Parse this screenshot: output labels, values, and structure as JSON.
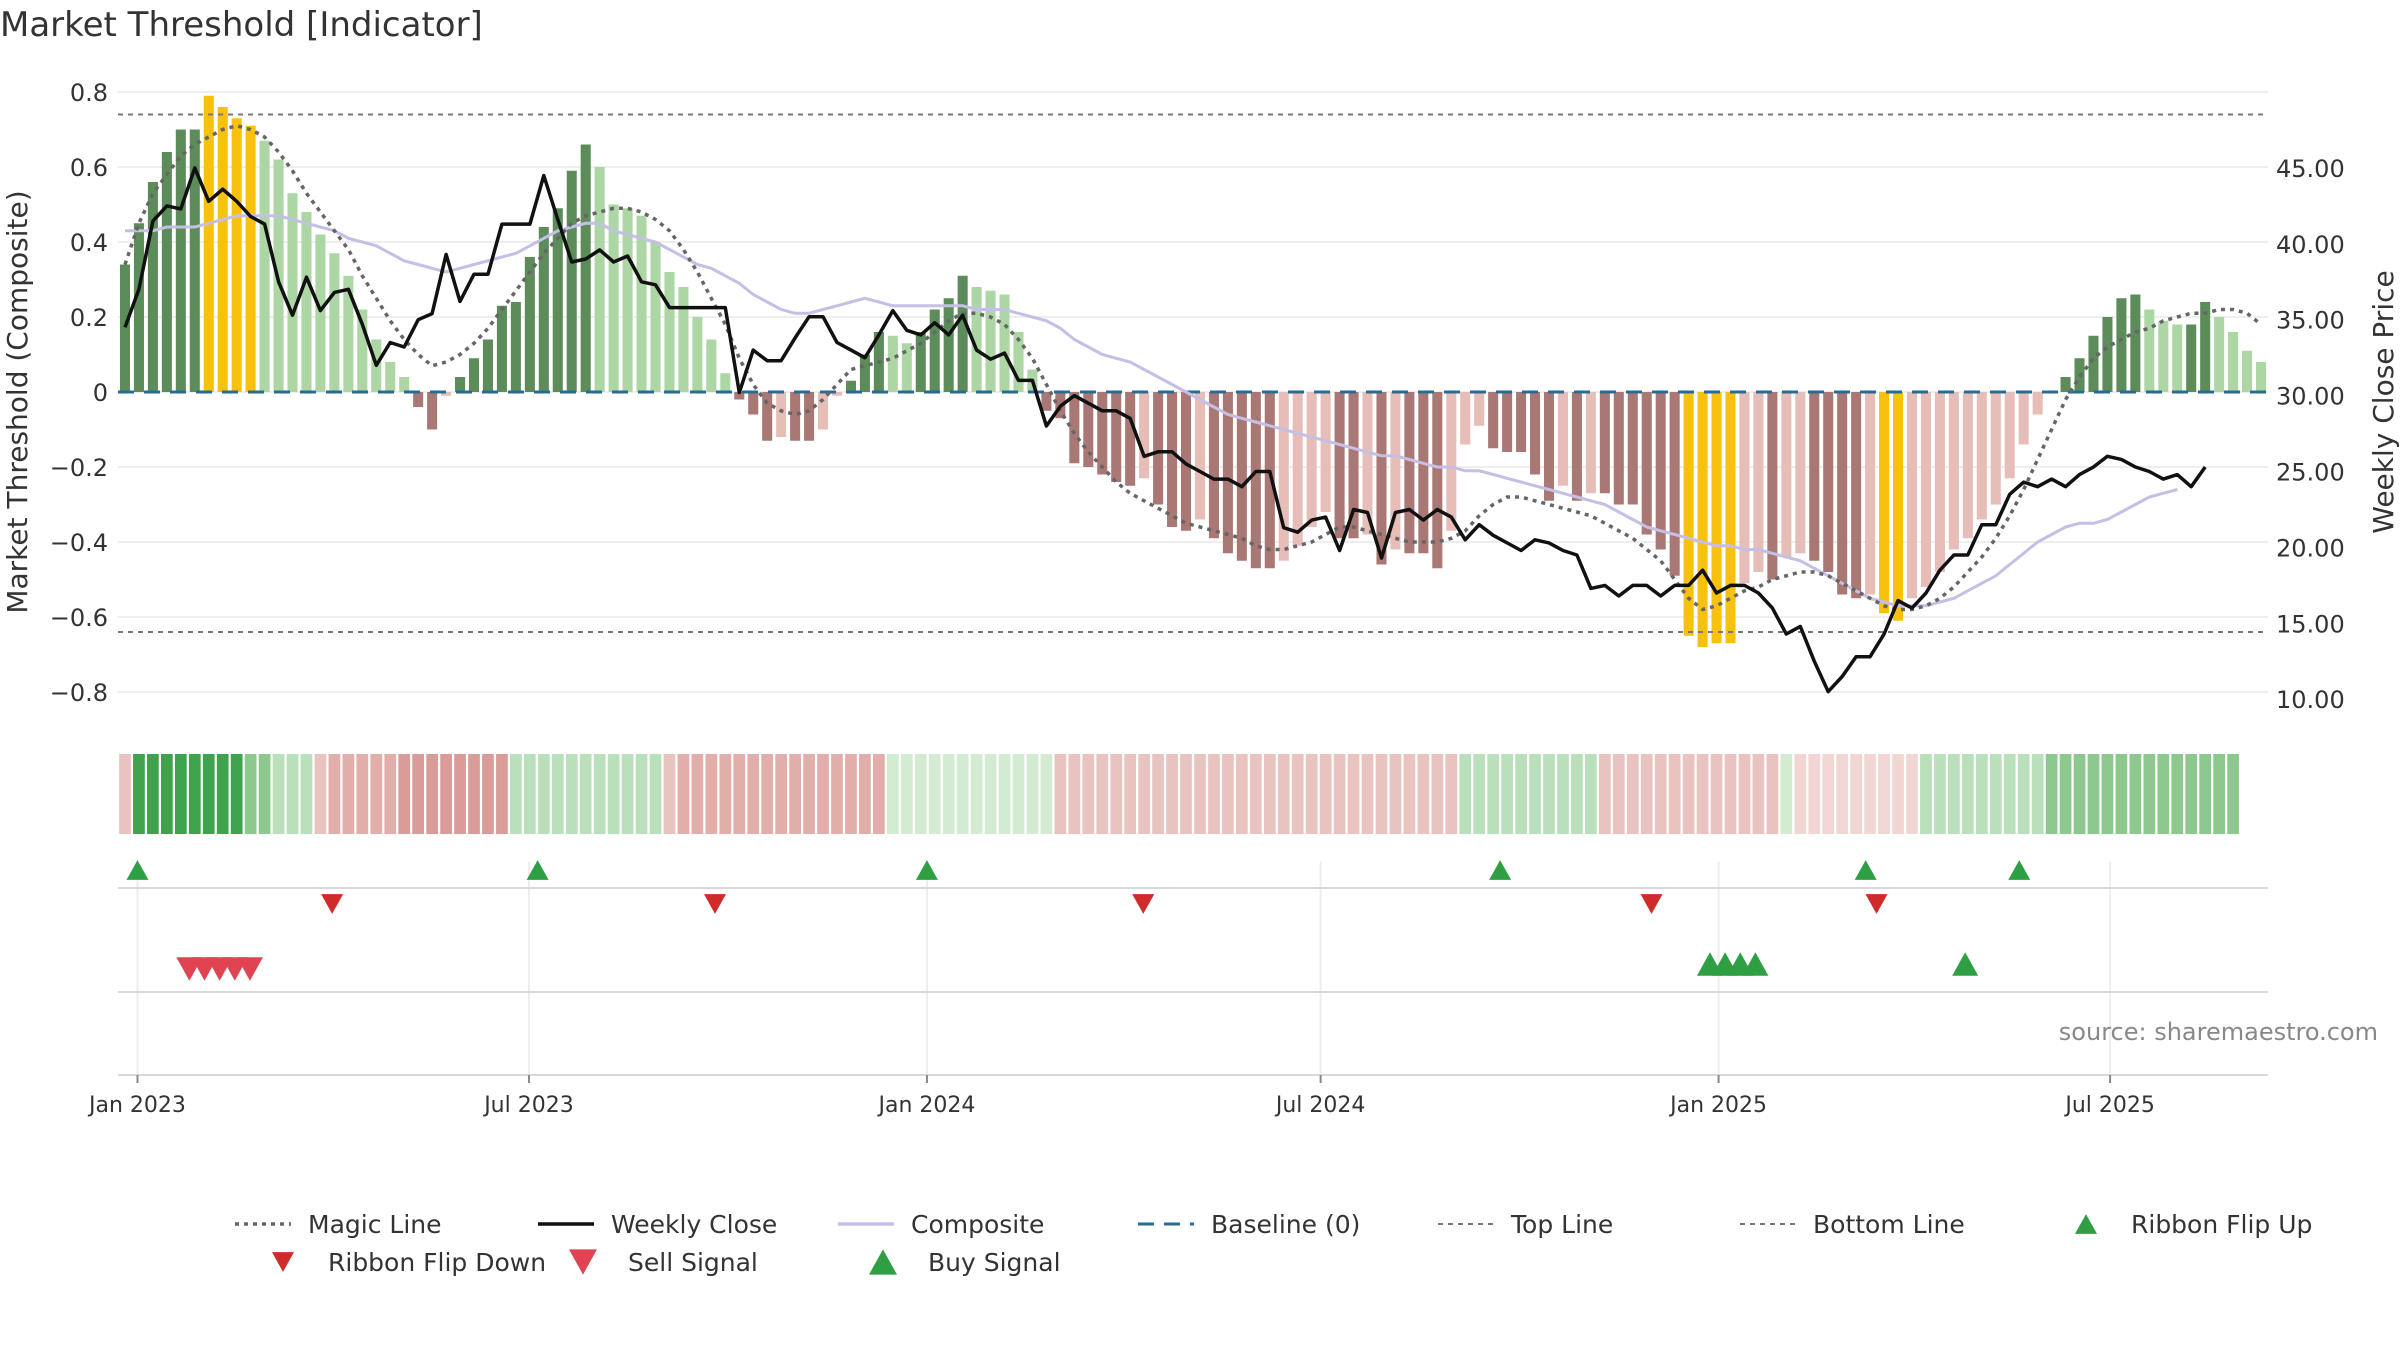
{
  "chart_data": {
    "type": "bar",
    "title": "Market Threshold [Indicator]",
    "ylabel_left": "Market Threshold (Composite)",
    "ylabel_right": "Weekly Close Price",
    "source": "source: sharemaestro.com",
    "y_left": {
      "range": [
        -0.88,
        0.8
      ],
      "ticks": [
        0.8,
        0.6,
        0.4,
        0.2,
        0,
        -0.2,
        -0.4,
        -0.6,
        -0.8
      ],
      "tick_labels": [
        "0.8",
        "0.6",
        "0.4",
        "0.2",
        "0",
        "−0.2",
        "−0.4",
        "−0.6",
        "−0.8"
      ]
    },
    "y_right": {
      "range": [
        8.5,
        50
      ],
      "ticks": [
        45,
        40,
        35,
        30,
        25,
        20,
        15,
        10
      ],
      "tick_labels": [
        "45.00",
        "40.00",
        "35.00",
        "30.00",
        "25.00",
        "20.00",
        "15.00",
        "10.00"
      ]
    },
    "x_axis": {
      "start_date": "2022-12-23",
      "end_date": "2025-09-12",
      "ticks": [
        {
          "date": "2023-01-01",
          "label": "Jan 2023"
        },
        {
          "date": "2023-07-01",
          "label": "Jul 2023"
        },
        {
          "date": "2024-01-01",
          "label": "Jan 2024"
        },
        {
          "date": "2024-07-01",
          "label": "Jul 2024"
        },
        {
          "date": "2025-01-01",
          "label": "Jan 2025"
        },
        {
          "date": "2025-07-01",
          "label": "Jul 2025"
        }
      ]
    },
    "top_line": 0.74,
    "bottom_line": -0.64,
    "baseline": 0,
    "composite_bars": [
      0.34,
      0.45,
      0.56,
      0.64,
      0.7,
      0.7,
      0.79,
      0.76,
      0.73,
      0.71,
      0.67,
      0.62,
      0.53,
      0.48,
      0.42,
      0.37,
      0.31,
      0.22,
      0.14,
      0.08,
      0.04,
      -0.04,
      -0.1,
      -0.01,
      0.04,
      0.09,
      0.14,
      0.23,
      0.24,
      0.36,
      0.44,
      0.49,
      0.59,
      0.66,
      0.6,
      0.5,
      0.49,
      0.47,
      0.4,
      0.32,
      0.28,
      0.2,
      0.14,
      0.05,
      -0.02,
      -0.06,
      -0.13,
      -0.12,
      -0.13,
      -0.13,
      -0.1,
      -0.01,
      0.03,
      0.1,
      0.16,
      0.15,
      0.13,
      0.16,
      0.22,
      0.25,
      0.31,
      0.28,
      0.27,
      0.26,
      0.16,
      0.06,
      -0.05,
      -0.07,
      -0.19,
      -0.2,
      -0.22,
      -0.24,
      -0.25,
      -0.23,
      -0.3,
      -0.36,
      -0.37,
      -0.34,
      -0.39,
      -0.43,
      -0.45,
      -0.47,
      -0.47,
      -0.45,
      -0.41,
      -0.36,
      -0.32,
      -0.39,
      -0.39,
      -0.38,
      -0.46,
      -0.42,
      -0.43,
      -0.43,
      -0.47,
      -0.37,
      -0.14,
      -0.09,
      -0.15,
      -0.16,
      -0.16,
      -0.22,
      -0.29,
      -0.25,
      -0.29,
      -0.27,
      -0.27,
      -0.3,
      -0.3,
      -0.38,
      -0.42,
      -0.49,
      -0.65,
      -0.68,
      -0.67,
      -0.67,
      -0.51,
      -0.48,
      -0.5,
      -0.44,
      -0.43,
      -0.45,
      -0.48,
      -0.54,
      -0.55,
      -0.54,
      -0.59,
      -0.61,
      -0.55,
      -0.52,
      -0.48,
      -0.42,
      -0.39,
      -0.34,
      -0.3,
      -0.23,
      -0.14,
      -0.06,
      0,
      0.04,
      0.09,
      0.15,
      0.2,
      0.25,
      0.26,
      0.22,
      0.19,
      0.18,
      0.18,
      0.24,
      0.2,
      0.16,
      0.11,
      0.08
    ],
    "magic_line": [
      0.34,
      0.45,
      0.53,
      0.58,
      0.63,
      0.66,
      0.68,
      0.7,
      0.71,
      0.7,
      0.68,
      0.64,
      0.59,
      0.53,
      0.48,
      0.43,
      0.38,
      0.31,
      0.25,
      0.19,
      0.14,
      0.1,
      0.07,
      0.08,
      0.1,
      0.13,
      0.17,
      0.22,
      0.27,
      0.32,
      0.37,
      0.41,
      0.45,
      0.47,
      0.48,
      0.49,
      0.49,
      0.48,
      0.46,
      0.43,
      0.38,
      0.32,
      0.25,
      0.18,
      0.09,
      0.02,
      -0.03,
      -0.05,
      -0.06,
      -0.05,
      -0.02,
      0.02,
      0.06,
      0.07,
      0.08,
      0.09,
      0.11,
      0.13,
      0.16,
      0.19,
      0.21,
      0.21,
      0.2,
      0.18,
      0.14,
      0.09,
      0.02,
      -0.05,
      -0.11,
      -0.16,
      -0.2,
      -0.24,
      -0.27,
      -0.29,
      -0.31,
      -0.33,
      -0.35,
      -0.36,
      -0.37,
      -0.38,
      -0.39,
      -0.41,
      -0.42,
      -0.42,
      -0.41,
      -0.4,
      -0.38,
      -0.36,
      -0.36,
      -0.37,
      -0.38,
      -0.39,
      -0.4,
      -0.4,
      -0.4,
      -0.39,
      -0.37,
      -0.33,
      -0.3,
      -0.28,
      -0.28,
      -0.29,
      -0.3,
      -0.31,
      -0.32,
      -0.33,
      -0.35,
      -0.37,
      -0.39,
      -0.42,
      -0.45,
      -0.5,
      -0.55,
      -0.58,
      -0.57,
      -0.55,
      -0.53,
      -0.52,
      -0.5,
      -0.49,
      -0.48,
      -0.48,
      -0.49,
      -0.51,
      -0.53,
      -0.55,
      -0.57,
      -0.58,
      -0.58,
      -0.57,
      -0.55,
      -0.52,
      -0.48,
      -0.44,
      -0.39,
      -0.33,
      -0.26,
      -0.18,
      -0.1,
      -0.02,
      0.04,
      0.09,
      0.12,
      0.14,
      0.16,
      0.17,
      0.19,
      0.2,
      0.21,
      0.21,
      0.22,
      0.22,
      0.21,
      0.18
    ],
    "composite_line": [
      0.43,
      0.43,
      0.43,
      0.44,
      0.44,
      0.44,
      0.45,
      0.46,
      0.47,
      0.47,
      0.47,
      0.47,
      0.46,
      0.45,
      0.44,
      0.43,
      0.41,
      0.4,
      0.39,
      0.37,
      0.35,
      0.34,
      0.33,
      0.32,
      0.33,
      0.34,
      0.35,
      0.36,
      0.37,
      0.39,
      0.41,
      0.43,
      0.44,
      0.45,
      0.45,
      0.43,
      0.42,
      0.41,
      0.4,
      0.38,
      0.36,
      0.34,
      0.33,
      0.31,
      0.29,
      0.26,
      0.24,
      0.22,
      0.21,
      0.21,
      0.22,
      0.23,
      0.24,
      0.25,
      0.24,
      0.23,
      0.23,
      0.23,
      0.23,
      0.23,
      0.23,
      0.22,
      0.22,
      0.22,
      0.21,
      0.2,
      0.19,
      0.17,
      0.14,
      0.12,
      0.1,
      0.09,
      0.08,
      0.06,
      0.04,
      0.02,
      0,
      -0.02,
      -0.04,
      -0.06,
      -0.07,
      -0.08,
      -0.09,
      -0.1,
      -0.11,
      -0.12,
      -0.13,
      -0.14,
      -0.15,
      -0.16,
      -0.17,
      -0.17,
      -0.18,
      -0.19,
      -0.2,
      -0.2,
      -0.21,
      -0.21,
      -0.22,
      -0.23,
      -0.24,
      -0.25,
      -0.26,
      -0.27,
      -0.28,
      -0.29,
      -0.3,
      -0.32,
      -0.34,
      -0.36,
      -0.37,
      -0.38,
      -0.39,
      -0.4,
      -0.41,
      -0.41,
      -0.42,
      -0.42,
      -0.43,
      -0.44,
      -0.45,
      -0.47,
      -0.49,
      -0.51,
      -0.53,
      -0.55,
      -0.56,
      -0.57,
      -0.57,
      -0.57,
      -0.56,
      -0.55,
      -0.53,
      -0.51,
      -0.49,
      -0.46,
      -0.43,
      -0.4,
      -0.38,
      -0.36,
      -0.35,
      -0.35,
      -0.34,
      -0.32,
      -0.3,
      -0.28,
      -0.27,
      -0.26
    ],
    "weekly_close": [
      34.5,
      37,
      41.5,
      42.5,
      42.3,
      45,
      42.8,
      43.6,
      42.8,
      41.8,
      41.3,
      37.5,
      35.3,
      37.8,
      35.6,
      36.8,
      37,
      34.7,
      32,
      33.5,
      33.2,
      35,
      35.4,
      39.3,
      36.2,
      38,
      38,
      41.3,
      41.3,
      41.3,
      44.5,
      41.6,
      38.8,
      39,
      39.6,
      38.8,
      39.2,
      37.5,
      37.3,
      35.8,
      35.8,
      35.8,
      35.8,
      35.8,
      30.2,
      33,
      32.3,
      32.3,
      33.8,
      35.2,
      35.2,
      33.5,
      33,
      32.5,
      34,
      35.6,
      34.3,
      34,
      34.8,
      34,
      35.3,
      33,
      32.4,
      32.8,
      31,
      31,
      28,
      29.3,
      30,
      29.5,
      29,
      29,
      28.5,
      26,
      26.3,
      26.3,
      25.5,
      25,
      24.5,
      24.5,
      24,
      25,
      25,
      21.3,
      21,
      21.8,
      22,
      19.8,
      22.5,
      22.3,
      19.3,
      22.3,
      22.5,
      21.8,
      22.5,
      22,
      20.5,
      21.5,
      20.8,
      20.3,
      19.8,
      20.5,
      20.3,
      19.8,
      19.5,
      17.3,
      17.5,
      16.8,
      17.5,
      17.5,
      16.8,
      17.5,
      17.5,
      18.5,
      17,
      17.5,
      17.5,
      17,
      16,
      14.3,
      14.8,
      12.5,
      10.5,
      11.5,
      12.8,
      12.8,
      14.3,
      16.5,
      16,
      17,
      18.5,
      19.5,
      19.5,
      21.5,
      21.5,
      23.5,
      24.3,
      24,
      24.5,
      24,
      24.8,
      25.3,
      26,
      25.8,
      25.3,
      25,
      24.5,
      24.8,
      24,
      25.3
    ],
    "ribbon": [
      "r1",
      "g3",
      "g3",
      "g3",
      "g3",
      "g3",
      "g3",
      "g3",
      "g3",
      "g2",
      "g2",
      "g1",
      "g1",
      "g1",
      "r1",
      "r2",
      "r2",
      "r2",
      "r2",
      "r2",
      "r3",
      "r3",
      "r3",
      "r3",
      "r3",
      "r3",
      "r3",
      "r3",
      "g1",
      "g1",
      "g1",
      "g1",
      "g1",
      "g1",
      "g1",
      "g1",
      "g1",
      "g1",
      "g1",
      "r1",
      "r2",
      "r2",
      "r2",
      "r2",
      "r2",
      "r2",
      "r2",
      "r2",
      "r2",
      "r2",
      "r2",
      "r2",
      "r2",
      "r2",
      "r2",
      "g0",
      "g0",
      "g0",
      "g0",
      "g0",
      "g0",
      "g0",
      "g0",
      "g0",
      "g0",
      "g0",
      "g0",
      "r1",
      "r1",
      "r1",
      "r1",
      "r1",
      "r1",
      "r1",
      "r1",
      "r1",
      "r1",
      "r1",
      "r1",
      "r1",
      "r1",
      "r1",
      "r1",
      "r1",
      "r1",
      "r1",
      "r1",
      "r1",
      "r1",
      "r1",
      "r1",
      "r1",
      "r1",
      "r1",
      "r1",
      "r1",
      "g1",
      "g1",
      "g1",
      "g1",
      "g1",
      "g1",
      "g1",
      "g1",
      "g1",
      "g1",
      "r1",
      "r1",
      "r1",
      "r1",
      "r1",
      "r1",
      "r1",
      "r1",
      "r1",
      "r1",
      "r1",
      "r1",
      "r1",
      "g0",
      "r0",
      "r0",
      "r0",
      "r0",
      "r0",
      "r0",
      "r0",
      "r0",
      "r0",
      "g1",
      "g1",
      "g1",
      "g1",
      "g1",
      "g1",
      "g1",
      "g1",
      "g1",
      "g2",
      "g2",
      "g2",
      "g2",
      "g2",
      "g2",
      "g2",
      "g2",
      "g2",
      "g2",
      "g2",
      "g2",
      "g2",
      "g2"
    ],
    "ribbon_flip_up": [
      "2023-01-01",
      "2023-07-05",
      "2024-01-01",
      "2024-09-22",
      "2025-03-10",
      "2025-05-20"
    ],
    "ribbon_flip_down": [
      "2023-04-01",
      "2023-09-25",
      "2024-04-10",
      "2024-12-01",
      "2025-03-15"
    ],
    "sell_signal": [
      "2023-01-25",
      "2023-02-01",
      "2023-02-08",
      "2023-02-15",
      "2023-02-22"
    ],
    "buy_signal": [
      "2024-12-28",
      "2025-01-04",
      "2025-01-11",
      "2025-01-18",
      "2025-04-25"
    ]
  },
  "legend": {
    "placement": "bottom",
    "items": [
      {
        "label": "Magic Line",
        "style": "dotted-gray"
      },
      {
        "label": "Weekly Close",
        "style": "solid-black"
      },
      {
        "label": "Composite",
        "style": "solid-lavender"
      },
      {
        "label": "Baseline (0)",
        "style": "dashed-blue"
      },
      {
        "label": "Top Line",
        "style": "dashed-gray"
      },
      {
        "label": "Bottom Line",
        "style": "dashed-gray"
      },
      {
        "label": "Ribbon Flip Up",
        "style": "triangle-up-green"
      },
      {
        "label": "Ribbon Flip Down",
        "style": "triangle-down-red"
      },
      {
        "label": "Sell Signal",
        "style": "triangle-down-red"
      },
      {
        "label": "Buy Signal",
        "style": "triangle-up-green"
      }
    ]
  },
  "colors": {
    "bull_strong": "#5b8c5a",
    "bull_weak": "#acd6a4",
    "bear_strong": "#a97874",
    "bear_weak": "#e7bdb8",
    "extreme": "#f7c10d",
    "magic_line": "#666666",
    "weekly_close": "#111111",
    "composite": "#c5bfe6",
    "baseline": "#2a6b95",
    "threshold": "#777777",
    "flip_up": "#2ea043",
    "flip_down": "#d12a2a",
    "sell": "#e04452",
    "buy": "#2ea043"
  }
}
